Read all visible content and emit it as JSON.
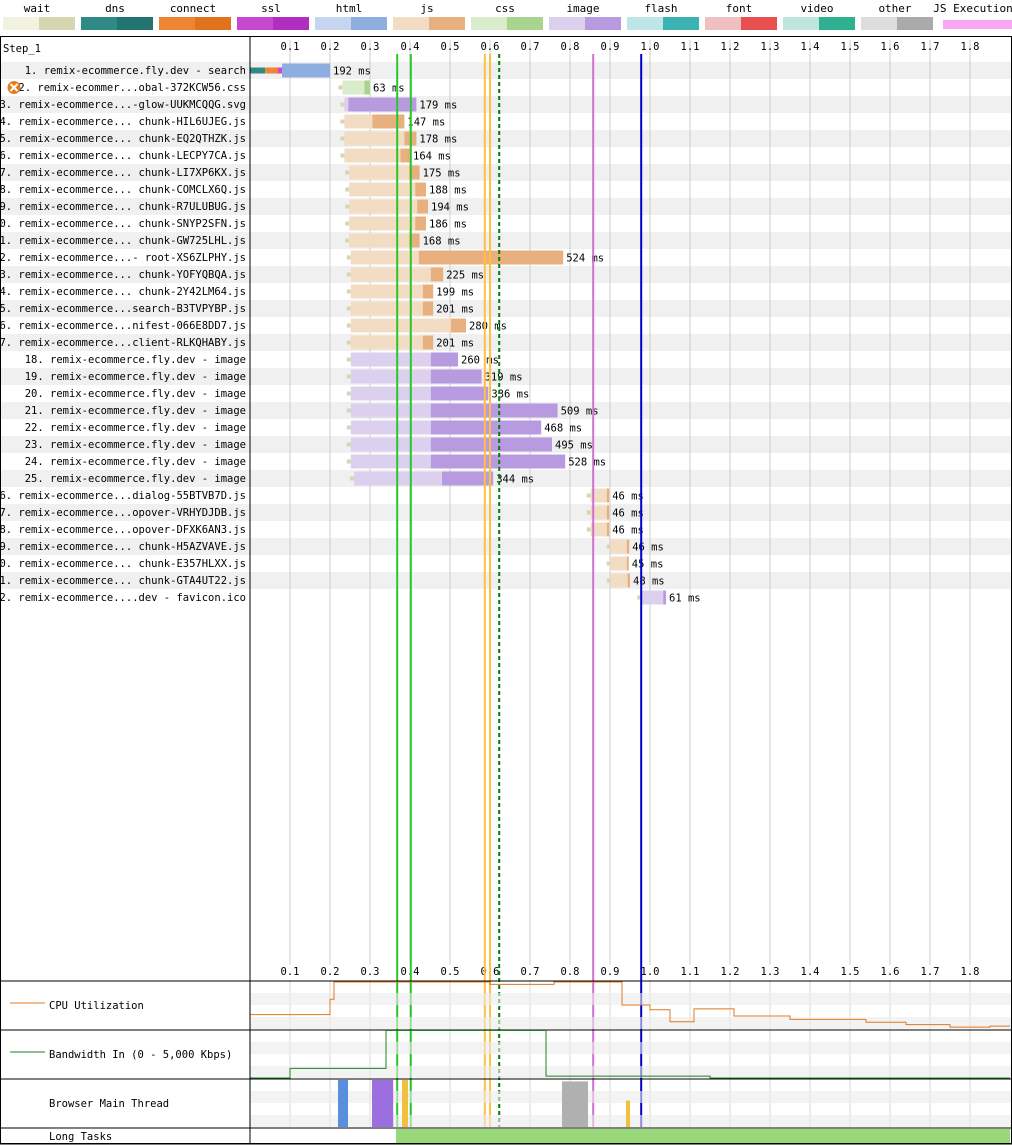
{
  "step_label": "Step_1",
  "legend": [
    {
      "name": "wait",
      "light": "#f2f2e0",
      "dark": "#d6d6b0"
    },
    {
      "name": "dns",
      "light": "#2f8a85",
      "dark": "#237470"
    },
    {
      "name": "connect",
      "light": "#ee8533",
      "dark": "#e0731c"
    },
    {
      "name": "ssl",
      "light": "#c64ad1",
      "dark": "#b02ec0"
    },
    {
      "name": "html",
      "light": "#c6d6f0",
      "dark": "#8faee0"
    },
    {
      "name": "js",
      "light": "#f2dcc4",
      "dark": "#e8b07e"
    },
    {
      "name": "css",
      "light": "#d9eccc",
      "dark": "#a8d48e"
    },
    {
      "name": "image",
      "light": "#ddd0ee",
      "dark": "#b89ae0"
    },
    {
      "name": "flash",
      "light": "#bfe6e6",
      "dark": "#3bb3b3"
    },
    {
      "name": "font",
      "light": "#f0c0c0",
      "dark": "#e85050"
    },
    {
      "name": "video",
      "light": "#bfe6dc",
      "dark": "#2fb090"
    },
    {
      "name": "other",
      "light": "#dddddd",
      "dark": "#aaaaaa"
    },
    {
      "name": "JS Execution",
      "light": "#f7a8f0",
      "dark": "#f7a8f0"
    }
  ],
  "chart_data": {
    "type": "waterfall",
    "x_unit": "seconds",
    "xlim": [
      0,
      1.9
    ],
    "ticks": [
      "0.1",
      "0.2",
      "0.3",
      "0.4",
      "0.5",
      "0.6",
      "0.7",
      "0.8",
      "0.9",
      "1.0",
      "1.1",
      "1.2",
      "1.3",
      "1.4",
      "1.5",
      "1.6",
      "1.7",
      "1.8"
    ],
    "requests": [
      {
        "label": "1. remix-ecommerce.fly.dev - search",
        "start": 0.0,
        "end": 0.2,
        "duration": "192 ms",
        "type": "html",
        "ttfb": 0.08,
        "dns": [
          0.0,
          0.038
        ],
        "connect": [
          0.038,
          0.07
        ],
        "ssl": [
          0.07,
          0.113
        ],
        "error": false
      },
      {
        "label": "2. remix-ecommer...obal-372KCW56.css",
        "start": 0.231,
        "end": 0.3,
        "duration": "63 ms",
        "type": "css",
        "ttfb": 0.055,
        "error": true
      },
      {
        "label": "3. remix-ecommerce...-glow-UUKMCQQG.svg",
        "start": 0.236,
        "end": 0.416,
        "duration": "179 ms",
        "type": "image",
        "ttfb": 0.01,
        "error": false
      },
      {
        "label": "4. remix-ecommerce... chunk-HIL6UJEG.js",
        "start": 0.236,
        "end": 0.386,
        "duration": "147 ms",
        "type": "js",
        "ttfb": 0.07,
        "error": false
      },
      {
        "label": "5. remix-ecommerce... chunk-EQ2QTHZK.js",
        "start": 0.236,
        "end": 0.416,
        "duration": "178 ms",
        "type": "js",
        "ttfb": 0.15,
        "error": false
      },
      {
        "label": "6. remix-ecommerce... chunk-LECPY7CA.js",
        "start": 0.236,
        "end": 0.4,
        "duration": "164 ms",
        "type": "js",
        "ttfb": 0.14,
        "error": false
      },
      {
        "label": "7. remix-ecommerce... chunk-LI7XP6KX.js",
        "start": 0.248,
        "end": 0.424,
        "duration": "175 ms",
        "type": "js",
        "ttfb": 0.15,
        "error": false
      },
      {
        "label": "8. remix-ecommerce... chunk-COMCLX6Q.js",
        "start": 0.248,
        "end": 0.44,
        "duration": "188 ms",
        "type": "js",
        "ttfb": 0.165,
        "error": false
      },
      {
        "label": "9. remix-ecommerce... chunk-R7ULUBUG.js",
        "start": 0.248,
        "end": 0.445,
        "duration": "194 ms",
        "type": "js",
        "ttfb": 0.17,
        "error": false
      },
      {
        "label": "10. remix-ecommerce... chunk-SNYP2SFN.js",
        "start": 0.248,
        "end": 0.44,
        "duration": "186 ms",
        "type": "js",
        "ttfb": 0.165,
        "error": false
      },
      {
        "label": "11. remix-ecommerce... chunk-GW725LHL.js",
        "start": 0.248,
        "end": 0.424,
        "duration": "168 ms",
        "type": "js",
        "ttfb": 0.15,
        "error": false
      },
      {
        "label": "12. remix-ecommerce...- root-XS6ZLPHY.js",
        "start": 0.252,
        "end": 0.783,
        "duration": "524 ms",
        "type": "js",
        "ttfb": 0.17,
        "error": false
      },
      {
        "label": "13. remix-ecommerce... chunk-YOFYQBQA.js",
        "start": 0.252,
        "end": 0.483,
        "duration": "225 ms",
        "type": "js",
        "ttfb": 0.2,
        "error": false
      },
      {
        "label": "14. remix-ecommerce... chunk-2Y42LM64.js",
        "start": 0.252,
        "end": 0.458,
        "duration": "199 ms",
        "type": "js",
        "ttfb": 0.18,
        "error": false
      },
      {
        "label": "15. remix-ecommerce...search-B3TVPYBP.js",
        "start": 0.252,
        "end": 0.458,
        "duration": "201 ms",
        "type": "js",
        "ttfb": 0.18,
        "error": false
      },
      {
        "label": "16. remix-ecommerce...nifest-066E8DD7.js",
        "start": 0.252,
        "end": 0.54,
        "duration": "280 ms",
        "type": "js",
        "ttfb": 0.25,
        "error": false
      },
      {
        "label": "17. remix-ecommerce...client-RLKQHABY.js",
        "start": 0.252,
        "end": 0.458,
        "duration": "201 ms",
        "type": "js",
        "ttfb": 0.18,
        "error": false
      },
      {
        "label": "18. remix-ecommerce.fly.dev - image",
        "start": 0.252,
        "end": 0.52,
        "duration": "260 ms",
        "type": "image",
        "ttfb": 0.2,
        "error": false
      },
      {
        "label": "19. remix-ecommerce.fly.dev - image",
        "start": 0.252,
        "end": 0.579,
        "duration": "319 ms",
        "type": "image",
        "ttfb": 0.2,
        "error": false
      },
      {
        "label": "20. remix-ecommerce.fly.dev - image",
        "start": 0.252,
        "end": 0.596,
        "duration": "336 ms",
        "type": "image",
        "ttfb": 0.2,
        "error": false
      },
      {
        "label": "21. remix-ecommerce.fly.dev - image",
        "start": 0.252,
        "end": 0.769,
        "duration": "509 ms",
        "type": "image",
        "ttfb": 0.2,
        "error": false
      },
      {
        "label": "22. remix-ecommerce.fly.dev - image",
        "start": 0.252,
        "end": 0.728,
        "duration": "468 ms",
        "type": "image",
        "ttfb": 0.2,
        "error": false
      },
      {
        "label": "23. remix-ecommerce.fly.dev - image",
        "start": 0.252,
        "end": 0.755,
        "duration": "495 ms",
        "type": "image",
        "ttfb": 0.2,
        "error": false
      },
      {
        "label": "24. remix-ecommerce.fly.dev - image",
        "start": 0.252,
        "end": 0.788,
        "duration": "528 ms",
        "type": "image",
        "ttfb": 0.2,
        "error": false
      },
      {
        "label": "25. remix-ecommerce.fly.dev - image",
        "start": 0.26,
        "end": 0.608,
        "duration": "344 ms",
        "type": "image",
        "ttfb": 0.22,
        "error": false
      },
      {
        "label": "26. remix-ecommerce...dialog-55BTVB7D.js",
        "start": 0.852,
        "end": 0.898,
        "duration": "46 ms",
        "type": "js",
        "ttfb": 0.04,
        "error": false
      },
      {
        "label": "27. remix-ecommerce...opover-VRHYDJDB.js",
        "start": 0.852,
        "end": 0.898,
        "duration": "46 ms",
        "type": "js",
        "ttfb": 0.04,
        "error": false
      },
      {
        "label": "28. remix-ecommerce...opover-DFXK6AN3.js",
        "start": 0.852,
        "end": 0.898,
        "duration": "46 ms",
        "type": "js",
        "ttfb": 0.04,
        "error": false
      },
      {
        "label": "29. remix-ecommerce... chunk-H5AZVAVE.js",
        "start": 0.902,
        "end": 0.948,
        "duration": "46 ms",
        "type": "js",
        "ttfb": 0.04,
        "error": false
      },
      {
        "label": "30. remix-ecommerce... chunk-E357HLXX.js",
        "start": 0.902,
        "end": 0.947,
        "duration": "45 ms",
        "type": "js",
        "ttfb": 0.04,
        "error": false
      },
      {
        "label": "31. remix-ecommerce... chunk-GTA4UT22.js",
        "start": 0.902,
        "end": 0.95,
        "duration": "48 ms",
        "type": "js",
        "ttfb": 0.042,
        "error": false
      },
      {
        "label": "32. remix-ecommerce....dev - favicon.ico",
        "start": 0.978,
        "end": 1.04,
        "duration": "61 ms",
        "type": "image",
        "ttfb": 0.055,
        "error": false
      }
    ],
    "markers": [
      {
        "time": 0.368,
        "color": "#28c828",
        "dashed": false
      },
      {
        "time": 0.402,
        "color": "#28c828",
        "dashed": false
      },
      {
        "time": 0.587,
        "color": "#ffc040",
        "dashed": false
      },
      {
        "time": 0.6,
        "color": "#ffc040",
        "dashed": false
      },
      {
        "time": 0.623,
        "color": "#008000",
        "dashed": true
      },
      {
        "time": 0.858,
        "color": "#d070d0",
        "dashed": false
      },
      {
        "time": 0.978,
        "color": "#0000c8",
        "dashed": false
      }
    ],
    "cpu_utilization": {
      "label": "CPU Utilization",
      "color": "#e07820",
      "points": [
        [
          0,
          0.3
        ],
        [
          0.2,
          0.3
        ],
        [
          0.2,
          0.62
        ],
        [
          0.21,
          0.62
        ],
        [
          0.21,
          0.98
        ],
        [
          0.6,
          0.98
        ],
        [
          0.6,
          0.93
        ],
        [
          0.76,
          0.93
        ],
        [
          0.76,
          0.98
        ],
        [
          0.93,
          0.98
        ],
        [
          0.93,
          0.5
        ],
        [
          1.0,
          0.5
        ],
        [
          1.0,
          0.4
        ],
        [
          1.05,
          0.4
        ],
        [
          1.05,
          0.15
        ],
        [
          1.11,
          0.15
        ],
        [
          1.11,
          0.42
        ],
        [
          1.21,
          0.42
        ],
        [
          1.21,
          0.27
        ],
        [
          1.35,
          0.27
        ],
        [
          1.35,
          0.2
        ],
        [
          1.54,
          0.2
        ],
        [
          1.54,
          0.14
        ],
        [
          1.64,
          0.14
        ],
        [
          1.64,
          0.09
        ],
        [
          1.75,
          0.09
        ],
        [
          1.75,
          0.04
        ],
        [
          1.85,
          0.04
        ],
        [
          1.85,
          0.06
        ],
        [
          1.9,
          0.06
        ]
      ]
    },
    "bandwidth_in": {
      "label": "Bandwidth In (0 - 5,000 Kbps)",
      "color": "#208020",
      "points": [
        [
          0,
          0.0
        ],
        [
          0.1,
          0.0
        ],
        [
          0.1,
          0.2
        ],
        [
          0.34,
          0.2
        ],
        [
          0.34,
          0.99
        ],
        [
          0.74,
          0.99
        ],
        [
          0.74,
          0.04
        ],
        [
          1.15,
          0.04
        ],
        [
          1.15,
          0.0
        ],
        [
          1.9,
          0.0
        ]
      ]
    },
    "main_thread": {
      "label": "Browser Main Thread",
      "segments": [
        {
          "start": 0.22,
          "end": 0.245,
          "color": "#5a8fe0",
          "height": 0.98
        },
        {
          "start": 0.305,
          "end": 0.358,
          "color": "#9b6fe0",
          "height": 0.98
        },
        {
          "start": 0.38,
          "end": 0.395,
          "color": "#f0c040",
          "height": 0.98
        },
        {
          "start": 0.78,
          "end": 0.845,
          "color": "#b0b0b0",
          "height": 0.95
        },
        {
          "start": 0.94,
          "end": 0.95,
          "color": "#f0c040",
          "height": 0.55
        }
      ]
    },
    "long_tasks": {
      "label": "Long Tasks",
      "color": "#98d878",
      "start": 0.365,
      "end": 1.9
    }
  }
}
